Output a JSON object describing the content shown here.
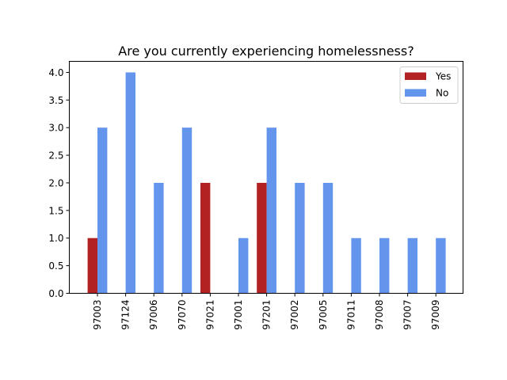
{
  "chart_data": {
    "type": "bar",
    "title": "Are you currently experiencing homelessness?",
    "xlabel": "",
    "ylabel": "",
    "categories": [
      "97003",
      "97124",
      "97006",
      "97070",
      "97021",
      "97001",
      "97201",
      "97002",
      "97005",
      "97011",
      "97008",
      "97007",
      "97009"
    ],
    "series": [
      {
        "name": "Yes",
        "color": "#b22222",
        "values": [
          1,
          0,
          0,
          0,
          2,
          0,
          2,
          0,
          0,
          0,
          0,
          0,
          0
        ]
      },
      {
        "name": "No",
        "color": "#6495ed",
        "values": [
          3,
          4,
          2,
          3,
          0,
          1,
          3,
          2,
          2,
          1,
          1,
          1,
          1
        ]
      }
    ],
    "ylim": [
      0,
      4.2
    ],
    "yticks": [
      "0.0",
      "0.5",
      "1.0",
      "1.5",
      "2.0",
      "2.5",
      "3.0",
      "3.5",
      "4.0"
    ],
    "grid": false,
    "legend": "top-right"
  }
}
